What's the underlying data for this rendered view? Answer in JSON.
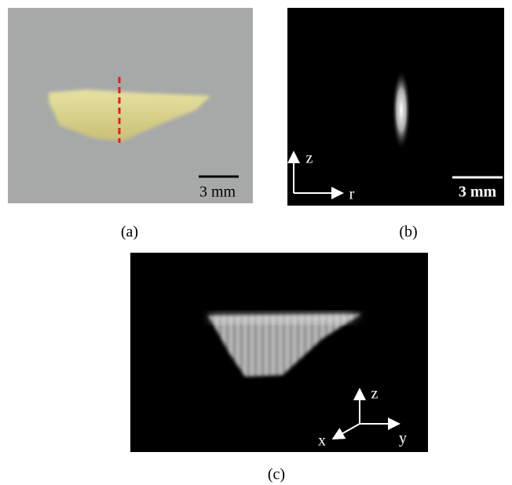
{
  "panels": [
    {
      "label": "(a)",
      "scale_bar": "3 mm"
    },
    {
      "label": "(b)",
      "scale_bar": "3 mm",
      "axes": [
        "z",
        "r"
      ]
    },
    {
      "label": "(c)",
      "axes": [
        "z",
        "y",
        "x"
      ]
    }
  ]
}
